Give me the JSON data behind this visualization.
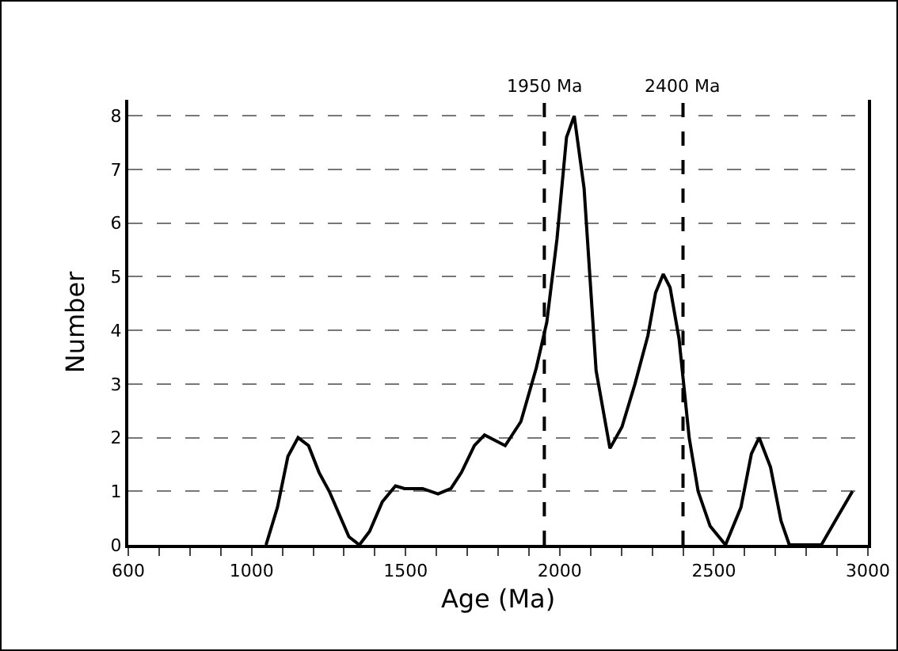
{
  "chart_data": {
    "type": "line",
    "xlabel": "Age (Ma)",
    "ylabel": "Number",
    "x": [
      1047,
      1084,
      1118,
      1151,
      1185,
      1219,
      1252,
      1316,
      1350,
      1383,
      1424,
      1467,
      1496,
      1555,
      1605,
      1647,
      1681,
      1723,
      1756,
      1823,
      1874,
      1924,
      1958,
      1991,
      2022,
      2047,
      2079,
      2118,
      2163,
      2202,
      2244,
      2286,
      2311,
      2336,
      2358,
      2387,
      2420,
      2449,
      2488,
      2538,
      2588,
      2622,
      2647,
      2684,
      2718,
      2745,
      2849,
      2899,
      2950
    ],
    "series": [
      {
        "color": "#000000",
        "values": [
          0,
          0.7,
          1.65,
          2,
          1.85,
          1.35,
          1,
          0.15,
          0,
          0.25,
          0.8,
          1.1,
          1.05,
          1.05,
          0.95,
          1.05,
          1.35,
          1.85,
          2.05,
          1.85,
          2.3,
          3.3,
          4.15,
          5.7,
          7.6,
          8,
          6.65,
          3.25,
          1.8,
          2.2,
          3,
          3.9,
          4.7,
          5.05,
          4.8,
          3.85,
          2,
          1,
          0.35,
          0,
          0.7,
          1.7,
          2,
          1.45,
          0.45,
          0,
          0,
          0.5,
          1
        ]
      }
    ],
    "xlim": [
      600,
      3000
    ],
    "ylim": [
      0,
      8.3
    ],
    "xticks": [
      600,
      {
        "value": 700,
        "label": null
      },
      {
        "value": 800,
        "label": null
      },
      {
        "value": 900,
        "label": null
      },
      1000,
      {
        "value": 1100,
        "label": null
      },
      {
        "value": 1200,
        "label": null
      },
      {
        "value": 1300,
        "label": null
      },
      {
        "value": 1400,
        "label": null
      },
      1500,
      {
        "value": 1600,
        "label": null
      },
      {
        "value": 1700,
        "label": null
      },
      {
        "value": 1800,
        "label": null
      },
      {
        "value": 1900,
        "label": null
      },
      2000,
      {
        "value": 2100,
        "label": null
      },
      {
        "value": 2200,
        "label": null
      },
      {
        "value": 2300,
        "label": null
      },
      {
        "value": 2400,
        "label": null
      },
      2500,
      {
        "value": 2600,
        "label": null
      },
      {
        "value": 2700,
        "label": null
      },
      {
        "value": 2800,
        "label": null
      },
      {
        "value": 2900,
        "label": null
      },
      3000
    ],
    "yticks": [
      0,
      1,
      2,
      3,
      4,
      5,
      6,
      7,
      8
    ],
    "grid": "y",
    "marker": "none",
    "line_style": "solid",
    "legend": false,
    "ref_lines": [
      {
        "axis": "x",
        "value": 1950,
        "label": "1950 Ma",
        "line_style": "dashed",
        "color": "#000000"
      },
      {
        "axis": "x",
        "value": 2400,
        "label": "2400 Ma",
        "line_style": "dashed",
        "color": "#000000"
      }
    ]
  }
}
